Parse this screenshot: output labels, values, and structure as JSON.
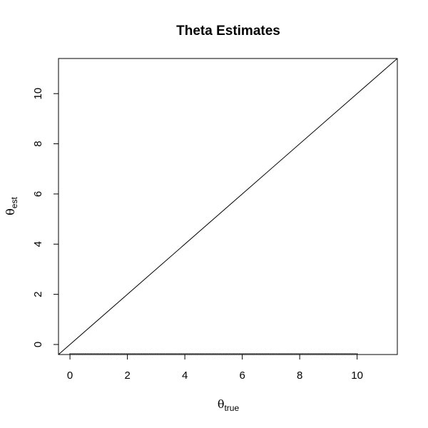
{
  "chart_data": {
    "type": "line",
    "title": "Theta Estimates",
    "xlabel": {
      "symbol": "θ",
      "subscript": "true"
    },
    "ylabel": {
      "symbol": "θ",
      "subscript": "est"
    },
    "xlim": [
      -0.4,
      11.4
    ],
    "ylim": [
      -0.4,
      11.4
    ],
    "x_ticks": [
      0,
      2,
      4,
      6,
      8,
      10
    ],
    "y_ticks": [
      0,
      2,
      4,
      6,
      8,
      10
    ],
    "grid": false,
    "series": [
      {
        "x": [
          -0.4,
          11.4
        ],
        "y": [
          -0.4,
          11.4
        ],
        "color": "#000000"
      }
    ],
    "rug_x": [
      0,
      0.05,
      0.1,
      0.15,
      0.2,
      0.25,
      0.3,
      0.35,
      0.4,
      0.45,
      0.5,
      0.55,
      0.6,
      0.65,
      0.7,
      0.75,
      0.8,
      0.85,
      0.9,
      0.95,
      1.0,
      1.05,
      1.1,
      1.15,
      1.2,
      1.25,
      1.3,
      1.35,
      1.4,
      1.45,
      1.5,
      1.55,
      1.6,
      1.65,
      1.7,
      1.75,
      1.8,
      1.85,
      1.9,
      1.95,
      2.0,
      2.05,
      2.1,
      2.15,
      2.2,
      2.25,
      2.3,
      2.35,
      2.4,
      2.45,
      2.5,
      2.55,
      2.6,
      2.65,
      2.7,
      2.75,
      2.8,
      2.85,
      2.9,
      2.95,
      3.0,
      3.05,
      3.1,
      3.15,
      3.2,
      3.25,
      3.3,
      3.35,
      3.4,
      3.45,
      3.5,
      3.55,
      3.6,
      3.65,
      3.7,
      3.75,
      3.8,
      3.85,
      3.9,
      3.95,
      4.0,
      4.05,
      4.1,
      4.15,
      4.2,
      4.25,
      4.3,
      4.35,
      4.4,
      4.45,
      4.5,
      4.55,
      4.6,
      4.65,
      4.7,
      4.75,
      4.8,
      4.85,
      4.9,
      4.95,
      5.0,
      5.05,
      5.1,
      5.15,
      5.2,
      5.25,
      5.3,
      5.35,
      5.4,
      5.45,
      5.5,
      5.55,
      5.6,
      5.65,
      5.7,
      5.75,
      5.8,
      5.85,
      5.9,
      5.95,
      6.0,
      6.05,
      6.1,
      6.15,
      6.2,
      6.25,
      6.3,
      6.35,
      6.4,
      6.45,
      6.5,
      6.55,
      6.6,
      6.65,
      6.7,
      6.75,
      6.8,
      6.85,
      6.9,
      6.95,
      7.0,
      7.05,
      7.1,
      7.15,
      7.2,
      7.25,
      7.3,
      7.35,
      7.4,
      7.45,
      7.5,
      7.55,
      7.6,
      7.65,
      7.7,
      7.75,
      7.8,
      7.85,
      7.9,
      7.95,
      8.0,
      8.05,
      8.1,
      8.15,
      8.2,
      8.25,
      8.3,
      8.35,
      8.4,
      8.45,
      8.5,
      8.55,
      8.6,
      8.65,
      8.7,
      8.75,
      8.8,
      8.85,
      8.9,
      8.95,
      9.0,
      9.05,
      9.1,
      9.15,
      9.2,
      9.25,
      9.3,
      9.35,
      9.4,
      9.45,
      9.5,
      9.55,
      9.6,
      9.65,
      9.7,
      9.75,
      9.8,
      9.85,
      9.9,
      9.95,
      10.0
    ],
    "colors": {
      "line": "#000000",
      "frame": "#000000",
      "background": "#ffffff"
    }
  }
}
